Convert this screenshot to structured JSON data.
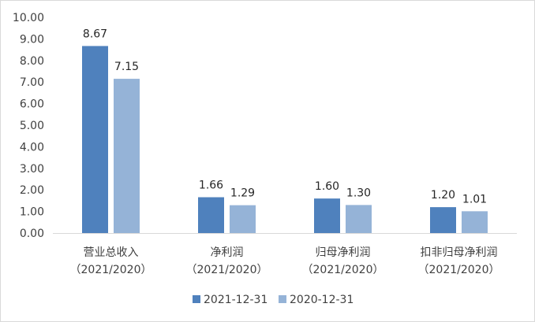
{
  "chart_data": {
    "type": "bar",
    "categories": [
      {
        "line1": "营业总收入",
        "line2": "（2021/2020）"
      },
      {
        "line1": "净利润",
        "line2": "（2021/2020）"
      },
      {
        "line1": "归母净利润",
        "line2": "（2021/2020）"
      },
      {
        "line1": "扣非归母净利润",
        "line2": "（2021/2020）"
      }
    ],
    "series": [
      {
        "name": "2021-12-31",
        "color": "#4f81bd",
        "values": [
          8.67,
          1.66,
          1.6,
          1.2
        ]
      },
      {
        "name": "2020-12-31",
        "color": "#95b3d7",
        "values": [
          7.15,
          1.29,
          1.3,
          1.01
        ]
      }
    ],
    "ylim": [
      0,
      10
    ],
    "yticks": [
      "0.00",
      "1.00",
      "2.00",
      "3.00",
      "4.00",
      "5.00",
      "6.00",
      "7.00",
      "8.00",
      "9.00",
      "10.00"
    ],
    "value_labels": [
      [
        "8.67",
        "1.66",
        "1.60",
        "1.20"
      ],
      [
        "7.15",
        "1.29",
        "1.30",
        "1.01"
      ]
    ],
    "grid": false,
    "legend": "bottom"
  }
}
